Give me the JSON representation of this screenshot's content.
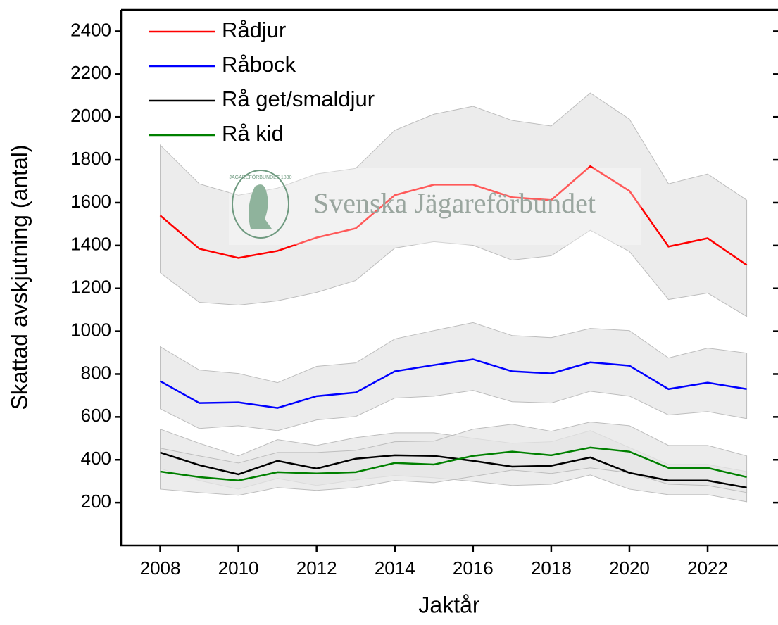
{
  "chart_data": {
    "type": "line",
    "x": [
      2008,
      2009,
      2010,
      2011,
      2012,
      2013,
      2014,
      2015,
      2016,
      2017,
      2018,
      2019,
      2020,
      2021,
      2022,
      2023
    ],
    "xlabel": "Jaktår",
    "ylabel": "Skattad avskjutning (antal)",
    "xlim": [
      2007,
      2023.8
    ],
    "ylim": [
      0,
      2500
    ],
    "xticks": [
      2008,
      2010,
      2012,
      2014,
      2016,
      2018,
      2020,
      2022
    ],
    "yticks": [
      200,
      400,
      600,
      800,
      1000,
      1200,
      1400,
      1600,
      1800,
      2000,
      2200,
      2400
    ],
    "legend": "upper left",
    "band_color": "#e6e6e6",
    "watermark": "Svenska Jägareförbundet",
    "watermark_logo": "JÄGAREFÖRBUNDET 1830",
    "series": [
      {
        "name": "Rådjur",
        "color": "#ff0000",
        "values": [
          1540,
          1385,
          1342,
          1375,
          1437,
          1480,
          1635,
          1684,
          1684,
          1625,
          1612,
          1770,
          1655,
          1395,
          1434,
          1309
        ],
        "upper": [
          1869,
          1688,
          1635,
          1668,
          1734,
          1760,
          1938,
          2013,
          2050,
          1984,
          1958,
          2112,
          1990,
          1688,
          1734,
          1612
        ],
        "lower": [
          1273,
          1135,
          1122,
          1142,
          1181,
          1237,
          1388,
          1418,
          1401,
          1332,
          1352,
          1471,
          1372,
          1148,
          1178,
          1069
        ]
      },
      {
        "name": "Råbock",
        "color": "#0000ff",
        "values": [
          767,
          665,
          668,
          642,
          697,
          714,
          813,
          842,
          869,
          813,
          803,
          855,
          839,
          730,
          760,
          730
        ],
        "upper": [
          928,
          819,
          803,
          760,
          836,
          852,
          964,
          1003,
          1040,
          980,
          970,
          1013,
          1003,
          875,
          921,
          898
        ],
        "lower": [
          638,
          546,
          559,
          536,
          586,
          602,
          688,
          697,
          724,
          671,
          665,
          720,
          697,
          609,
          625,
          592
        ]
      },
      {
        "name": "Rå get/smaldjur",
        "color": "#000000",
        "values": [
          434,
          375,
          332,
          395,
          359,
          405,
          421,
          418,
          395,
          368,
          372,
          411,
          339,
          303,
          303,
          270
        ],
        "upper": [
          543,
          477,
          418,
          494,
          467,
          503,
          526,
          526,
          500,
          477,
          484,
          536,
          457,
          378,
          378,
          345
        ],
        "lower": [
          359,
          303,
          263,
          313,
          280,
          306,
          326,
          316,
          299,
          280,
          286,
          329,
          263,
          237,
          237,
          204
        ]
      },
      {
        "name": "Rå kid",
        "color": "#008000",
        "values": [
          345,
          319,
          303,
          342,
          336,
          342,
          385,
          378,
          418,
          438,
          421,
          457,
          438,
          362,
          362,
          319
        ],
        "upper": [
          454,
          418,
          385,
          434,
          434,
          444,
          484,
          487,
          543,
          566,
          533,
          576,
          559,
          467,
          467,
          418
        ],
        "lower": [
          263,
          247,
          234,
          270,
          257,
          270,
          303,
          293,
          322,
          352,
          336,
          362,
          339,
          286,
          280,
          247
        ]
      }
    ]
  }
}
